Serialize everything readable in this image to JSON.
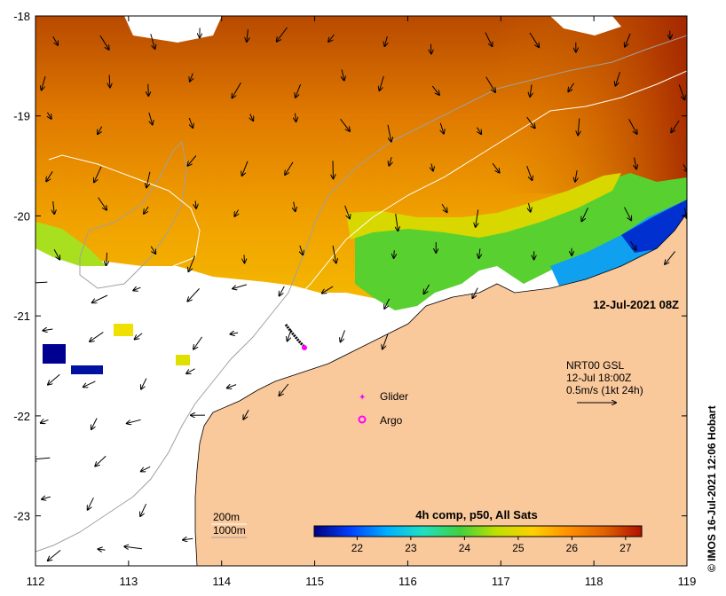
{
  "map": {
    "lon_range": [
      112,
      119
    ],
    "lat_range": [
      -23.5,
      -18
    ],
    "x_ticks": [
      "112",
      "113",
      "114",
      "115",
      "116",
      "117",
      "118",
      "119"
    ],
    "y_ticks": [
      "-18",
      "-19",
      "-20",
      "-21",
      "-22",
      "-23"
    ],
    "land_color": "#f9c89b",
    "no_data_color": "#ffffff",
    "timestamp": "12-Jul-2021 08Z"
  },
  "current_info": {
    "line1": "NRT00 GSL",
    "line2": "12-Jul 18:00Z",
    "line3": "0.5m/s (1kt 24h)"
  },
  "legend": {
    "glider": "Glider",
    "argo": "Argo",
    "glider_color": "#ff00ff",
    "argo_color": "#ff00ff"
  },
  "isobaths": {
    "label_200": "200m",
    "label_1000": "1000m"
  },
  "colorbar": {
    "title": "4h comp, p50, All Sats",
    "ticks": [
      "22",
      "23",
      "24",
      "25",
      "26",
      "27"
    ],
    "range": [
      21.2,
      27.3
    ],
    "colors": [
      "#00007f",
      "#0040ff",
      "#00b0ff",
      "#20e0c0",
      "#40d040",
      "#c0e000",
      "#ffd000",
      "#ff9000",
      "#e06000",
      "#b01000"
    ]
  },
  "credit": "© IMOS 16-Jul-2021 12:06 Hobart"
}
